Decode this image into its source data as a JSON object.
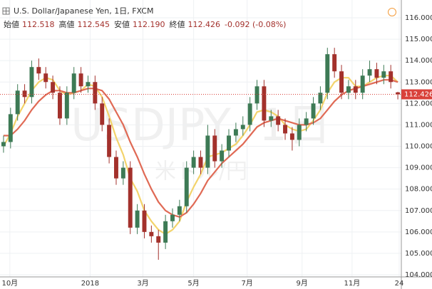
{
  "chart_data": {
    "type": "candlestick",
    "title": "U.S. Dollar/Japanese Yen, 1日, FXCM",
    "ohlc_labels": [
      "始値",
      "高値",
      "安値",
      "終値"
    ],
    "ohlc_values": [
      112.518,
      112.545,
      {
        "value": 112.19,
        "label": "112.190"
      },
      112.426
    ],
    "change": "-0.092 (-0.08%)",
    "watermark": "USDJPY, 1日",
    "watermark_sub": "米ドル/円",
    "last_price": 112.426,
    "up_color": "#3d7a55",
    "down_color": "#a3312c",
    "last_color": "#d9413a",
    "xlim": [
      0,
      57
    ],
    "xticks": [
      {
        "value": 1.4,
        "label": "10月"
      },
      {
        "value": 12.8,
        "label": "2018"
      },
      {
        "value": 20.3,
        "label": "3月"
      },
      {
        "value": 27.5,
        "label": "5月"
      },
      {
        "value": 35.1,
        "label": "7月"
      },
      {
        "value": 42.9,
        "label": "9月"
      },
      {
        "value": 50,
        "label": "11月"
      },
      {
        "value": 56.7,
        "label": "24"
      }
    ],
    "ylim": [
      104,
      116
    ],
    "yticks": [
      {
        "value": 104,
        "label": "104.000"
      },
      {
        "value": 105,
        "label": "105.000"
      },
      {
        "value": 106,
        "label": "106.000"
      },
      {
        "value": 107,
        "label": "107.000"
      },
      {
        "value": 108,
        "label": "108.000"
      },
      {
        "value": 109,
        "label": "109.000"
      },
      {
        "value": 110,
        "label": "110.000"
      },
      {
        "value": 111,
        "label": "111.000"
      },
      {
        "value": 112,
        "label": "112.000"
      },
      {
        "value": 113,
        "label": "113.000"
      },
      {
        "value": 114,
        "label": "114.000"
      },
      {
        "value": 115,
        "label": "115.000"
      },
      {
        "value": 116,
        "label": "116.000"
      }
    ],
    "grid": true,
    "open": [
      110.0,
      110.2,
      111.5,
      112.6,
      112.3,
      113.7,
      113.4,
      113.0,
      112.5,
      111.3,
      112.5,
      113.4,
      112.8,
      113.0,
      112.0,
      111.0,
      109.5,
      108.5,
      109.0,
      106.2,
      107.0,
      106.0,
      105.8,
      105.5,
      106.5,
      106.8,
      107.2,
      109.0,
      109.5,
      109.0,
      110.5,
      109.3,
      109.8,
      110.5,
      110.8,
      111.0,
      112.0,
      112.8,
      111.2,
      111.4,
      111.0,
      110.6,
      110.3,
      111.0,
      111.3,
      112.0,
      112.5,
      114.3,
      113.5,
      112.5,
      112.8,
      112.5,
      113.3,
      113.6,
      113.2,
      113.5,
      112.518
    ],
    "high": [
      110.5,
      111.8,
      112.9,
      112.9,
      114.0,
      114.1,
      113.7,
      113.3,
      112.8,
      112.8,
      113.7,
      113.7,
      113.3,
      113.3,
      112.3,
      111.3,
      109.8,
      109.3,
      109.3,
      107.3,
      107.3,
      106.3,
      106.1,
      106.8,
      107.1,
      107.5,
      109.3,
      109.8,
      109.8,
      111.0,
      110.8,
      110.1,
      110.8,
      111.1,
      111.4,
      112.3,
      113.1,
      113.1,
      111.7,
      111.7,
      111.3,
      110.9,
      111.3,
      111.6,
      112.3,
      112.8,
      114.6,
      114.6,
      113.8,
      113.1,
      113.1,
      113.6,
      114.0,
      113.9,
      113.8,
      113.8,
      112.545
    ],
    "low": [
      109.7,
      109.9,
      111.2,
      112.0,
      112.0,
      113.1,
      112.7,
      112.2,
      111.0,
      111.0,
      112.2,
      112.5,
      112.5,
      111.7,
      110.7,
      109.2,
      108.2,
      108.2,
      105.9,
      105.9,
      105.7,
      105.5,
      104.7,
      105.2,
      106.2,
      106.5,
      106.9,
      108.7,
      108.7,
      108.7,
      109.0,
      109.0,
      109.5,
      110.2,
      110.5,
      110.7,
      111.7,
      110.9,
      110.9,
      110.7,
      110.3,
      109.8,
      110.0,
      110.7,
      111.0,
      111.7,
      112.2,
      113.2,
      112.2,
      112.2,
      112.2,
      112.2,
      113.0,
      112.9,
      112.9,
      112.7,
      112.19
    ],
    "close": [
      110.2,
      111.5,
      112.6,
      112.3,
      113.7,
      113.4,
      113.0,
      112.5,
      111.3,
      112.5,
      113.4,
      112.8,
      113.0,
      112.0,
      111.0,
      109.5,
      108.5,
      109.0,
      106.2,
      107.0,
      106.0,
      105.8,
      105.5,
      106.5,
      106.8,
      107.2,
      109.0,
      109.5,
      109.0,
      110.5,
      109.3,
      109.8,
      110.5,
      110.8,
      111.0,
      112.0,
      112.8,
      111.2,
      111.4,
      111.0,
      110.6,
      110.3,
      111.0,
      111.3,
      112.0,
      112.5,
      114.3,
      113.5,
      112.5,
      112.8,
      112.5,
      113.3,
      113.6,
      113.2,
      113.5,
      113.0,
      112.426
    ],
    "lines": [
      {
        "color": "#f3d36b",
        "values": [
          110.0,
          110.6,
          111.4,
          112.0,
          112.6,
          113.0,
          113.2,
          113.1,
          112.6,
          112.4,
          112.5,
          112.6,
          112.9,
          112.8,
          112.3,
          111.4,
          110.4,
          109.6,
          108.5,
          107.9,
          107.0,
          106.5,
          106.1,
          105.9,
          106.1,
          106.5,
          107.4,
          108.1,
          108.7,
          109.5,
          109.6,
          109.7,
          109.9,
          110.1,
          110.5,
          111.0,
          111.6,
          111.7,
          111.6,
          111.4,
          111.0,
          110.8,
          110.7,
          110.8,
          111.2,
          111.7,
          112.5,
          113.0,
          113.2,
          113.2,
          112.8,
          112.8,
          113.0,
          113.2,
          113.3,
          113.3,
          113.0
        ]
      },
      {
        "color": "#e06a55",
        "values": [
          110.5,
          110.5,
          110.8,
          111.2,
          111.7,
          112.1,
          112.4,
          112.6,
          112.6,
          112.5,
          112.5,
          112.6,
          112.7,
          112.7,
          112.6,
          112.2,
          111.6,
          111.0,
          110.2,
          109.5,
          108.7,
          108.0,
          107.4,
          107.0,
          106.8,
          106.7,
          106.9,
          107.3,
          107.8,
          108.4,
          108.8,
          109.2,
          109.5,
          109.8,
          110.1,
          110.5,
          110.9,
          111.1,
          111.2,
          111.3,
          111.2,
          111.1,
          111.0,
          111.0,
          111.1,
          111.3,
          111.7,
          112.1,
          112.4,
          112.6,
          112.7,
          112.8,
          112.9,
          113.0,
          113.1,
          113.1,
          113.0
        ]
      }
    ]
  }
}
